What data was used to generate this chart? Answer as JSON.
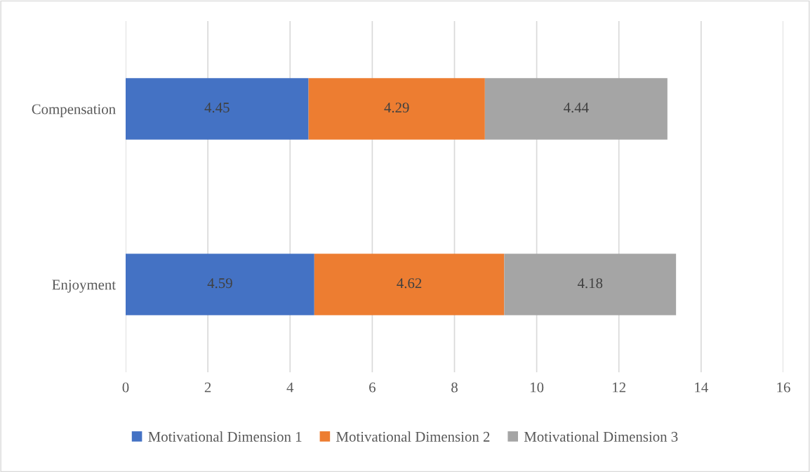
{
  "chart_data": {
    "type": "bar",
    "orientation": "horizontal",
    "stacked": true,
    "categories": [
      "Compensation",
      "Enjoyment"
    ],
    "series": [
      {
        "name": "Motivational Dimension 1",
        "color": "#4472c4",
        "values": [
          4.45,
          4.59
        ]
      },
      {
        "name": "Motivational Dimension 2",
        "color": "#ed7d31",
        "values": [
          4.29,
          4.62
        ]
      },
      {
        "name": "Motivational Dimension 3",
        "color": "#a5a5a5",
        "values": [
          4.44,
          4.18
        ]
      }
    ],
    "xlim": [
      0,
      16
    ],
    "xticks": [
      0,
      2,
      4,
      6,
      8,
      10,
      12,
      14,
      16
    ],
    "grid": "x",
    "legend": "bottom",
    "data_labels": true
  }
}
